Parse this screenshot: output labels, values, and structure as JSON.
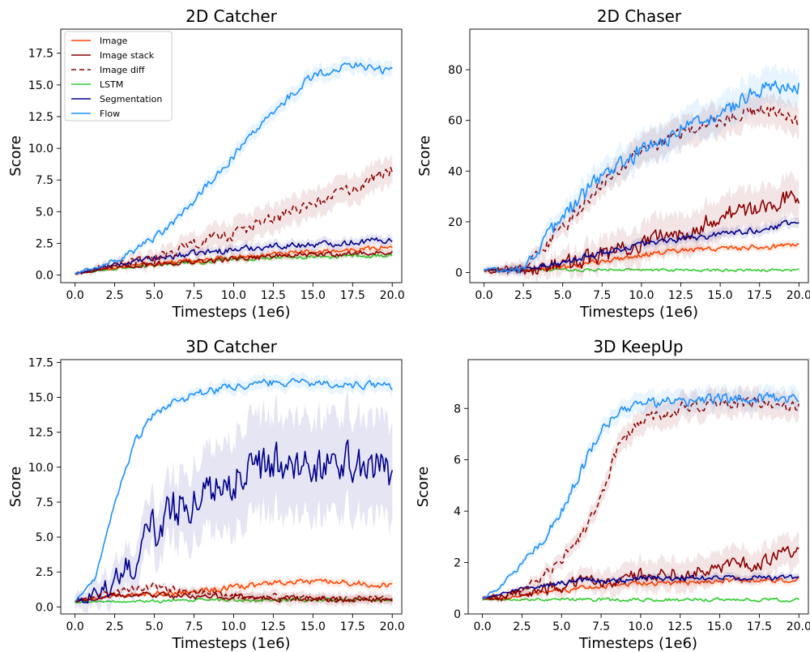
{
  "colors": {
    "Image": "#ff4500",
    "Image stack": "#8b0000",
    "Image diff": "#8b0000",
    "LSTM": "#32cd32",
    "Segmentation": "#00008b",
    "Flow": "#1e90ff"
  },
  "chart_data": [
    {
      "type": "line",
      "title": "2D Catcher",
      "xlabel": "Timesteps (1e6)",
      "ylabel": "Score",
      "xlim": [
        -0.9,
        20.6
      ],
      "ylim": [
        -0.6,
        19.4
      ],
      "xticks": [
        "0.0",
        "2.5",
        "5.0",
        "7.5",
        "10.0",
        "12.5",
        "15.0",
        "17.5",
        "20.0"
      ],
      "yticks": [
        "0.0",
        "2.5",
        "5.0",
        "7.5",
        "10.0",
        "12.5",
        "15.0",
        "17.5"
      ],
      "legend": "top-left",
      "x": [
        0,
        2.5,
        5,
        7.5,
        10,
        12.5,
        15,
        17.5,
        20
      ],
      "series": [
        {
          "name": "Image",
          "style": "solid",
          "values": [
            0.1,
            0.6,
            0.9,
            1.1,
            1.4,
            1.6,
            1.8,
            2.0,
            2.2
          ],
          "band": 0.3
        },
        {
          "name": "Image stack",
          "style": "solid",
          "values": [
            0.1,
            0.6,
            0.9,
            1.0,
            1.3,
            1.5,
            1.6,
            1.7,
            1.8
          ],
          "band": 0.3
        },
        {
          "name": "Image diff",
          "style": "dashed",
          "values": [
            0.1,
            0.7,
            1.3,
            2.4,
            3.3,
            4.4,
            5.6,
            6.8,
            8.2
          ],
          "band": 1.1
        },
        {
          "name": "LSTM",
          "style": "solid",
          "values": [
            0.1,
            0.5,
            0.8,
            1.0,
            1.3,
            1.4,
            1.4,
            1.5,
            1.5
          ],
          "band": 0.2
        },
        {
          "name": "Segmentation",
          "style": "solid",
          "values": [
            0.1,
            0.8,
            1.3,
            1.7,
            2.0,
            2.3,
            2.4,
            2.6,
            2.8
          ],
          "band": 0.4
        },
        {
          "name": "Flow",
          "style": "solid",
          "values": [
            0.1,
            1.1,
            2.8,
            5.8,
            9.4,
            12.9,
            15.8,
            16.6,
            16.1
          ],
          "band": 0.6
        }
      ]
    },
    {
      "type": "line",
      "title": "2D Chaser",
      "xlabel": "Timesteps (1e6)",
      "ylabel": "Score",
      "xlim": [
        -0.9,
        20.6
      ],
      "ylim": [
        -4,
        96
      ],
      "xticks": [
        "0.0",
        "2.5",
        "5.0",
        "7.5",
        "10.0",
        "12.5",
        "15.0",
        "17.5",
        "20.0"
      ],
      "yticks": [
        "0",
        "20",
        "40",
        "60",
        "80"
      ],
      "x": [
        0,
        2.5,
        5,
        7.5,
        10,
        12.5,
        15,
        17.5,
        20
      ],
      "series": [
        {
          "name": "Image",
          "style": "solid",
          "values": [
            1,
            1,
            2,
            4.5,
            7,
            8.5,
            9.5,
            10,
            11
          ],
          "band": 1.5
        },
        {
          "name": "Image stack",
          "style": "solid",
          "values": [
            1,
            1,
            3,
            7,
            11,
            16,
            22,
            26,
            31
          ],
          "band": 8
        },
        {
          "name": "Image diff",
          "style": "dashed",
          "values": [
            1,
            1,
            18,
            35,
            48,
            55,
            60,
            64,
            60
          ],
          "band": 6
        },
        {
          "name": "LSTM",
          "style": "solid",
          "values": [
            1,
            1,
            1,
            1,
            1,
            1,
            1,
            1,
            1
          ],
          "band": 0.3
        },
        {
          "name": "Segmentation",
          "style": "solid",
          "values": [
            1,
            1,
            4,
            8,
            11,
            13,
            15,
            17,
            20
          ],
          "band": 2
        },
        {
          "name": "Flow",
          "style": "solid",
          "values": [
            1,
            1,
            22,
            38,
            48,
            56,
            63,
            72,
            74
          ],
          "band": 7
        }
      ]
    },
    {
      "type": "line",
      "title": "3D Catcher",
      "xlabel": "Timesteps (1e6)",
      "ylabel": "Score",
      "xlim": [
        -0.9,
        20.6
      ],
      "ylim": [
        -0.5,
        17.7
      ],
      "xticks": [
        "0.0",
        "2.5",
        "5.0",
        "7.5",
        "10.0",
        "12.5",
        "15.0",
        "17.5",
        "20.0"
      ],
      "yticks": [
        "0.0",
        "2.5",
        "5.0",
        "7.5",
        "10.0",
        "12.5",
        "15.0",
        "17.5"
      ],
      "x": [
        0,
        1.25,
        2.5,
        3.75,
        5,
        6.25,
        7.5,
        10,
        12.5,
        15,
        17.5,
        20
      ],
      "series": [
        {
          "name": "Image",
          "style": "solid",
          "values": [
            0.4,
            0.6,
            0.8,
            0.9,
            1.0,
            1.0,
            1.1,
            1.4,
            1.7,
            1.8,
            1.7,
            1.5
          ],
          "band": 0.3
        },
        {
          "name": "Image stack",
          "style": "solid",
          "values": [
            0.4,
            0.6,
            0.8,
            0.8,
            0.9,
            0.8,
            0.8,
            0.7,
            0.6,
            0.6,
            0.5,
            0.5
          ],
          "band": 0.3
        },
        {
          "name": "Image diff",
          "style": "dashed",
          "values": [
            0.4,
            0.8,
            1.1,
            1.3,
            1.5,
            1.2,
            1.0,
            0.8,
            0.7,
            0.6,
            0.6,
            0.6
          ],
          "band": 0.4
        },
        {
          "name": "LSTM",
          "style": "solid",
          "values": [
            0.3,
            0.4,
            0.4,
            0.4,
            0.4,
            0.5,
            0.5,
            0.5,
            0.5,
            0.5,
            0.5,
            0.5
          ],
          "band": 0.1
        },
        {
          "name": "Segmentation",
          "style": "solid",
          "values": [
            0.4,
            0.9,
            1.8,
            3.5,
            5.5,
            7.0,
            7.8,
            9.2,
            10.2,
            10.2,
            10.3,
            9.8
          ],
          "band": 3.5
        },
        {
          "name": "Flow",
          "style": "solid",
          "values": [
            0.4,
            2.0,
            7.5,
            11.8,
            13.8,
            14.6,
            15.2,
            15.8,
            16.1,
            16.0,
            15.9,
            15.8
          ],
          "band": 0.5
        }
      ]
    },
    {
      "type": "line",
      "title": "3D KeepUp",
      "xlabel": "Timesteps (1e6)",
      "ylabel": "Score",
      "xlim": [
        -0.9,
        20.6
      ],
      "ylim": [
        0,
        9.9
      ],
      "xticks": [
        "0.0",
        "2.5",
        "5.0",
        "7.5",
        "10.0",
        "12.5",
        "15.0",
        "17.5",
        "20.0"
      ],
      "yticks": [
        "0",
        "2",
        "4",
        "6",
        "8"
      ],
      "x": [
        0,
        1.25,
        2.5,
        3.75,
        5,
        6.25,
        7.5,
        8.75,
        10,
        12.5,
        15,
        17.5,
        20
      ],
      "series": [
        {
          "name": "Image",
          "style": "solid",
          "values": [
            0.6,
            0.6,
            0.7,
            0.8,
            0.9,
            1.0,
            1.1,
            1.1,
            1.2,
            1.2,
            1.3,
            1.3,
            1.3
          ],
          "band": 0.15
        },
        {
          "name": "Image stack",
          "style": "solid",
          "values": [
            0.6,
            0.7,
            0.8,
            0.9,
            1.1,
            1.2,
            1.3,
            1.4,
            1.5,
            1.6,
            1.8,
            2.0,
            2.6
          ],
          "band": 0.6
        },
        {
          "name": "Image diff",
          "style": "dashed",
          "values": [
            0.6,
            0.6,
            0.9,
            1.4,
            2.2,
            3.0,
            4.6,
            6.8,
            7.5,
            8.0,
            8.2,
            8.2,
            8.1
          ],
          "band": 0.5
        },
        {
          "name": "LSTM",
          "style": "solid",
          "values": [
            0.55,
            0.55,
            0.55,
            0.55,
            0.55,
            0.55,
            0.55,
            0.55,
            0.55,
            0.55,
            0.55,
            0.55,
            0.55
          ],
          "band": 0.05
        },
        {
          "name": "Segmentation",
          "style": "solid",
          "values": [
            0.6,
            0.8,
            1.0,
            1.1,
            1.2,
            1.3,
            1.3,
            1.3,
            1.4,
            1.4,
            1.4,
            1.4,
            1.4
          ],
          "band": 0.15
        },
        {
          "name": "Flow",
          "style": "solid",
          "values": [
            0.6,
            1.1,
            2.0,
            2.8,
            4.0,
            5.6,
            7.2,
            7.9,
            8.2,
            8.3,
            8.4,
            8.4,
            8.4
          ],
          "band": 0.4
        }
      ]
    }
  ]
}
